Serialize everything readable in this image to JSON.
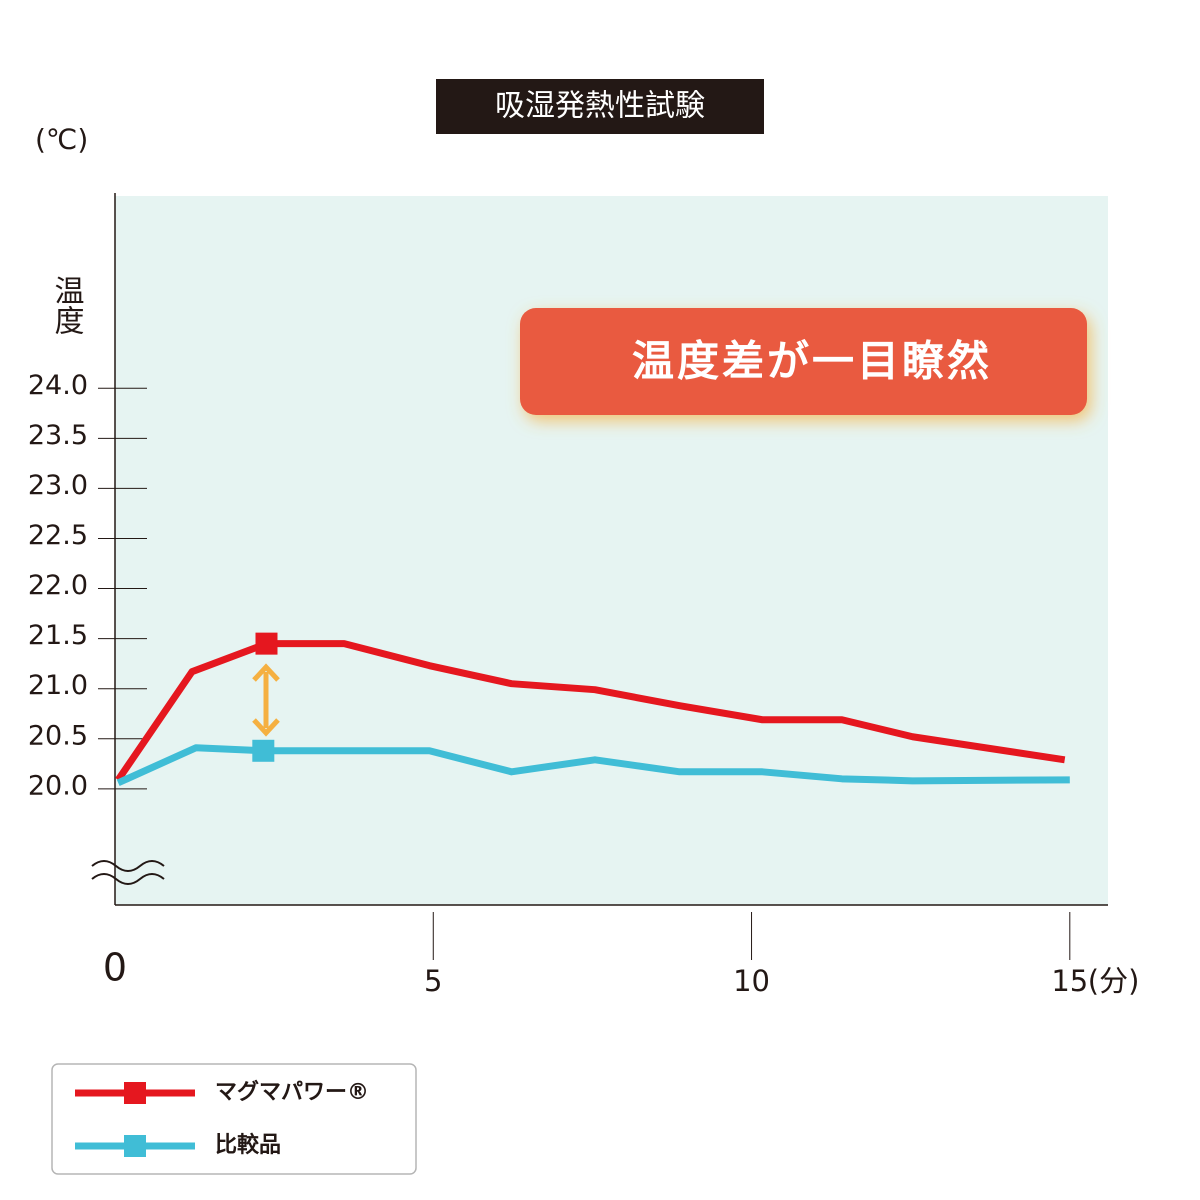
{
  "chart_data": {
    "type": "line",
    "title": "吸湿発熱性試験",
    "y_unit": "(℃)",
    "y_label": "温度",
    "x_unit": "(分)",
    "callout": "温度差が一目瞭然",
    "xlim": [
      0,
      15.6
    ],
    "ylim": [
      18.84,
      25.92
    ],
    "xticks": [
      0,
      5,
      10,
      15
    ],
    "yticks": [
      {
        "value": 20.0,
        "label": "20.0"
      },
      {
        "value": 20.5,
        "label": "20.5"
      },
      {
        "value": 21.0,
        "label": "21.0"
      },
      {
        "value": 21.5,
        "label": "21.5"
      },
      {
        "value": 22.0,
        "label": "22.0"
      },
      {
        "value": 22.5,
        "label": "22.5"
      },
      {
        "value": 23.0,
        "label": "23.0"
      },
      {
        "value": 23.5,
        "label": "23.5"
      },
      {
        "value": 24.0,
        "label": "24.0"
      }
    ],
    "series": [
      {
        "name": "マグマパワー®",
        "color": "#e5171f",
        "marker_index": 2,
        "x": [
          0.05,
          1.21,
          2.38,
          3.6,
          4.94,
          6.23,
          7.54,
          8.87,
          10.17,
          11.42,
          12.53,
          14.92
        ],
        "values": [
          20.09,
          21.17,
          21.45,
          21.45,
          21.23,
          21.05,
          20.99,
          20.83,
          20.69,
          20.69,
          20.52,
          20.29
        ]
      },
      {
        "name": "比較品",
        "color": "#40bdd6",
        "marker_index": 2,
        "x": [
          0.05,
          1.27,
          2.33,
          4.94,
          6.23,
          7.54,
          8.87,
          10.17,
          11.42,
          12.53,
          15.0
        ],
        "values": [
          20.06,
          20.41,
          20.38,
          20.38,
          20.17,
          20.29,
          20.17,
          20.17,
          20.1,
          20.08,
          20.09
        ]
      }
    ]
  }
}
